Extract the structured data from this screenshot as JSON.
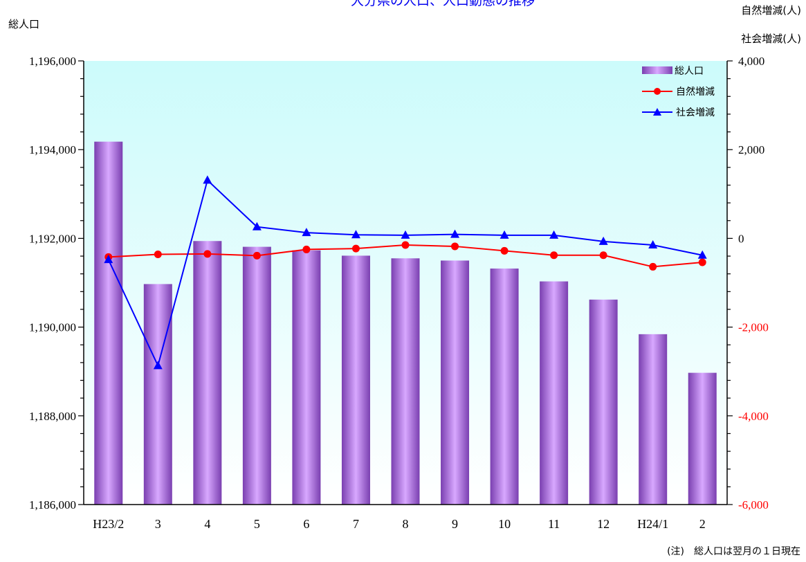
{
  "title": "大分県の人口、人口動態の推移",
  "left_axis_label": "総人口",
  "right_axis_label_1": "自然増減(人)",
  "right_axis_label_2": "社会増減(人)",
  "note": "(注)　総人口は翌月の１日現在",
  "colors": {
    "bar": "#a86ee0",
    "natural": "#ff0000",
    "social": "#0000ff",
    "plot_bg_top": "#ccfbfb",
    "plot_bg_bottom": "#ffffff",
    "axis": "#000000"
  },
  "chart_data": {
    "type": "bar+line",
    "categories": [
      "H23/2",
      "3",
      "4",
      "5",
      "6",
      "7",
      "8",
      "9",
      "10",
      "11",
      "12",
      "H24/1",
      "2"
    ],
    "left_axis": {
      "ylim": [
        1186000,
        1196000
      ],
      "ticks": [
        1186000,
        1188000,
        1190000,
        1192000,
        1194000,
        1196000
      ],
      "tick_labels": [
        "1,186,000",
        "1,188,000",
        "1,190,000",
        "1,192,000",
        "1,194,000",
        "1,196,000"
      ]
    },
    "right_axis": {
      "ylim": [
        -6000,
        4000
      ],
      "ticks": [
        -6000,
        -4000,
        -2000,
        0,
        2000,
        4000
      ],
      "tick_labels": [
        "-6,000",
        "-4,000",
        "-2,000",
        "0",
        "2,000",
        "4,000"
      ],
      "negative_color": "#ff0000"
    },
    "series": [
      {
        "name": "総人口",
        "type": "bar",
        "axis": "left",
        "values": [
          1194180,
          1190970,
          1191940,
          1191810,
          1191730,
          1191610,
          1191550,
          1191500,
          1191320,
          1191030,
          1190620,
          1189840,
          1188970
        ]
      },
      {
        "name": "自然増減",
        "type": "line",
        "marker": "circle",
        "axis": "right",
        "values": [
          -420,
          -360,
          -350,
          -390,
          -250,
          -230,
          -150,
          -180,
          -280,
          -380,
          -380,
          -640,
          -540
        ]
      },
      {
        "name": "社会増減",
        "type": "line",
        "marker": "triangle",
        "axis": "right",
        "values": [
          -480,
          -2870,
          1310,
          260,
          130,
          80,
          70,
          90,
          70,
          70,
          -70,
          -150,
          -380
        ]
      }
    ],
    "legend_position": "top-right",
    "grid": false
  }
}
